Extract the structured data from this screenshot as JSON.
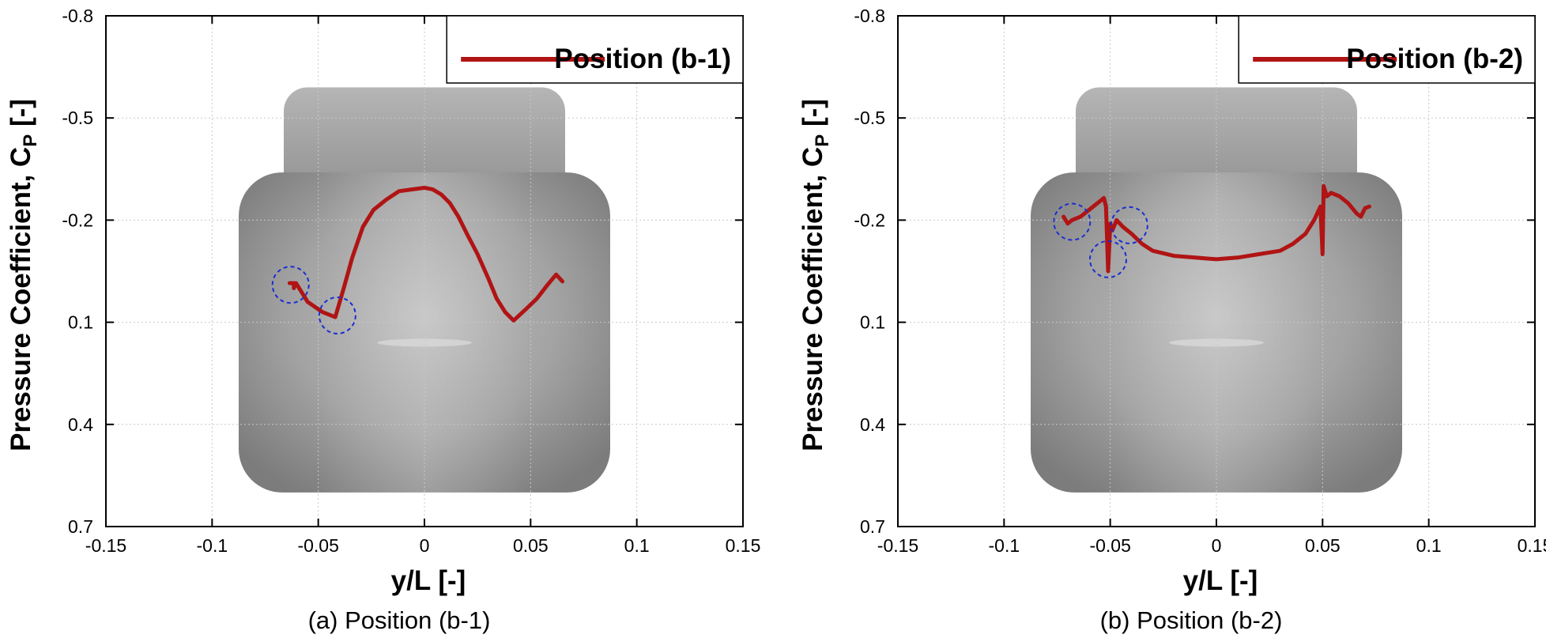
{
  "colors": {
    "series": "#b01414",
    "annotation": "#1a2ed0",
    "grid": "#c8c8c8",
    "body": "#8c8c8c"
  },
  "chart_data": [
    {
      "type": "line",
      "caption": "(a) Position (b-1)",
      "xlabel": "y/L [-]",
      "ylabel_main": "Pressure Coefficient, C",
      "ylabel_sub": "P",
      "ylabel_suffix": " [-]",
      "xlim": [
        -0.15,
        0.15
      ],
      "ylim": [
        -0.8,
        0.7
      ],
      "y_inverted": true,
      "grid": true,
      "legend_position": "top-right",
      "xticks": [
        "-0.15",
        "-0.1",
        "-0.05",
        "0",
        "0.05",
        "0.1",
        "0.15"
      ],
      "yticks": [
        "-0.8",
        "-0.5",
        "-0.2",
        "0.1",
        "0.4",
        "0.7"
      ],
      "background_image": "vehicle-body-front-view",
      "series": [
        {
          "name": "Position (b-1)",
          "color": "#b01414",
          "x": [
            -0.0635,
            -0.0615,
            -0.0615,
            -0.0605,
            -0.055,
            -0.048,
            -0.042,
            -0.038,
            -0.034,
            -0.029,
            -0.024,
            -0.018,
            -0.012,
            -0.006,
            0.0,
            0.004,
            0.008,
            0.012,
            0.016,
            0.02,
            0.025,
            0.03,
            0.034,
            0.038,
            0.042,
            0.048,
            0.053,
            0.058,
            0.062,
            0.0635,
            0.065
          ],
          "y": [
            -0.015,
            -0.015,
            0.0,
            -0.015,
            0.04,
            0.07,
            0.085,
            0.0,
            -0.09,
            -0.18,
            -0.23,
            -0.26,
            -0.285,
            -0.29,
            -0.295,
            -0.29,
            -0.275,
            -0.25,
            -0.21,
            -0.16,
            -0.1,
            -0.03,
            0.03,
            0.07,
            0.095,
            0.06,
            0.03,
            -0.01,
            -0.04,
            -0.03,
            -0.02
          ]
        }
      ],
      "annotations": [
        {
          "shape": "dashed-circle",
          "x": -0.063,
          "y": -0.01
        },
        {
          "shape": "dashed-circle",
          "x": -0.041,
          "y": 0.08
        }
      ]
    },
    {
      "type": "line",
      "caption": "(b) Position (b-2)",
      "xlabel": "y/L [-]",
      "ylabel_main": "Pressure Coefficient, C",
      "ylabel_sub": "P",
      "ylabel_suffix": " [-]",
      "xlim": [
        -0.15,
        0.15
      ],
      "ylim": [
        -0.8,
        0.7
      ],
      "y_inverted": true,
      "grid": true,
      "legend_position": "top-right",
      "xticks": [
        "-0.15",
        "-0.1",
        "-0.05",
        "0",
        "0.05",
        "0.1",
        "0.15"
      ],
      "yticks": [
        "-0.8",
        "-0.5",
        "-0.2",
        "0.1",
        "0.4",
        "0.7"
      ],
      "background_image": "vehicle-body-front-view",
      "series": [
        {
          "name": "Position (b-2)",
          "color": "#b01414",
          "x": [
            -0.072,
            -0.07,
            -0.068,
            -0.064,
            -0.06,
            -0.056,
            -0.053,
            -0.052,
            -0.051,
            -0.05,
            -0.049,
            -0.047,
            -0.044,
            -0.04,
            -0.035,
            -0.03,
            -0.02,
            -0.01,
            0.0,
            0.01,
            0.02,
            0.03,
            0.036,
            0.042,
            0.046,
            0.049,
            0.05,
            0.0505,
            0.051,
            0.052,
            0.054,
            0.058,
            0.062,
            0.066,
            0.068,
            0.07,
            0.072
          ],
          "y": [
            -0.21,
            -0.19,
            -0.2,
            -0.21,
            -0.23,
            -0.25,
            -0.265,
            -0.24,
            -0.05,
            -0.19,
            -0.17,
            -0.2,
            -0.18,
            -0.16,
            -0.13,
            -0.11,
            -0.095,
            -0.09,
            -0.085,
            -0.09,
            -0.1,
            -0.11,
            -0.13,
            -0.16,
            -0.2,
            -0.24,
            -0.1,
            -0.3,
            -0.29,
            -0.27,
            -0.28,
            -0.27,
            -0.25,
            -0.22,
            -0.21,
            -0.235,
            -0.24
          ]
        }
      ],
      "annotations": [
        {
          "shape": "dashed-circle",
          "x": -0.068,
          "y": -0.195
        },
        {
          "shape": "dashed-circle",
          "x": -0.051,
          "y": -0.085
        },
        {
          "shape": "dashed-circle",
          "x": -0.041,
          "y": -0.185
        }
      ]
    }
  ]
}
